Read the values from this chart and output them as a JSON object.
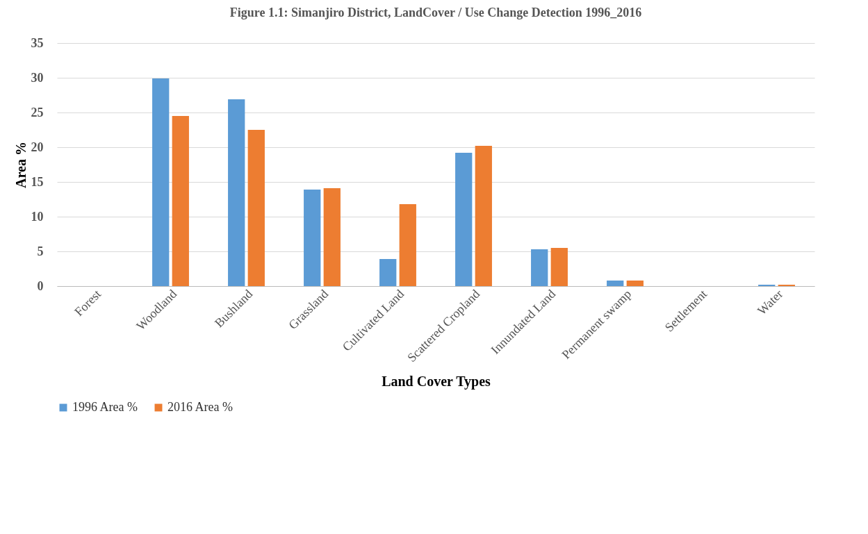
{
  "chart_data": {
    "type": "bar",
    "title": "Figure 1.1: Simanjiro  District, LandCover / Use Change Detection 1996_2016",
    "xlabel": "Land Cover Types",
    "ylabel": "Area %",
    "categories": [
      "Forest",
      "Woodland",
      "Bushland",
      "Grassland",
      "Cultivated Land",
      "Scattered Cropland",
      "Innundated Land",
      "Permanent swamp",
      "Settlement",
      "Water"
    ],
    "series": [
      {
        "name": "1996 Area %",
        "color": "#5b9bd5",
        "values": [
          0,
          29.9,
          26.9,
          13.9,
          3.9,
          19.2,
          5.3,
          0.8,
          0,
          0.2
        ]
      },
      {
        "name": "2016 Area %",
        "color": "#ed7d31",
        "values": [
          0,
          24.5,
          22.5,
          14.1,
          11.8,
          20.2,
          5.5,
          0.8,
          0,
          0.2
        ]
      }
    ],
    "ylim": [
      0,
      35
    ],
    "yticks": [
      0,
      5,
      10,
      15,
      20,
      25,
      30,
      35
    ],
    "grid": "y",
    "legend": "bottom"
  }
}
